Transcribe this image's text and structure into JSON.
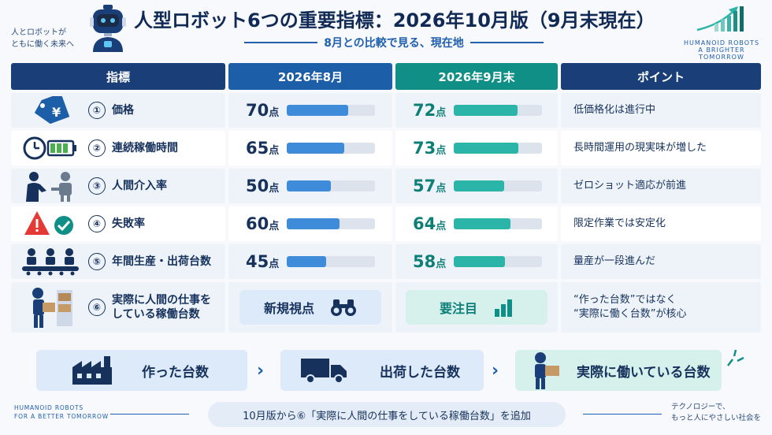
{
  "header": {
    "tagline_lines": [
      "人とロボットが",
      "ともに働く未来へ"
    ],
    "title": "人型ロボット6つの重要指標：2026年10月版（9月末現在）",
    "subtitle": "8月との比較で見る、現在地",
    "brand_lines": [
      "HUMANOID ROBOTS",
      "A BRIGHTER TOMORROW"
    ]
  },
  "table": {
    "columns": [
      "指標",
      "2026年8月",
      "2026年9月末",
      "ポイント"
    ],
    "score_unit": "点",
    "rows": [
      {
        "num": "①",
        "label": "価格",
        "icon": "price-tag-yen-icon",
        "aug": 70,
        "sep": 72,
        "point": "低価格化は進行中"
      },
      {
        "num": "②",
        "label": "連続稼働時間",
        "icon": "clock-battery-icon",
        "aug": 65,
        "sep": 73,
        "point": "長時間運用の現実味が増した"
      },
      {
        "num": "③",
        "label": "人間介入率",
        "icon": "human-robot-handshake-icon",
        "aug": 50,
        "sep": 57,
        "point": "ゼロショット適応が前進"
      },
      {
        "num": "④",
        "label": "失敗率",
        "icon": "warning-check-icon",
        "aug": 60,
        "sep": 64,
        "point": "限定作業では安定化"
      },
      {
        "num": "⑤",
        "label": "年間生産・出荷台数",
        "icon": "robot-assembly-line-icon",
        "aug": 45,
        "sep": 58,
        "point": "量産が一段進んだ"
      }
    ],
    "row6": {
      "num": "⑥",
      "label_lines": [
        "実際に人間の仕事を",
        "している稼働台数"
      ],
      "icon": "robot-carrying-box-icon",
      "aug_text": "新規視点",
      "aug_icon": "binoculars-icon",
      "sep_text": "要注目",
      "sep_icon": "bar-chart-icon",
      "point_lines": [
        "“作った台数”ではなく",
        "“実際に働く台数”が核心"
      ]
    }
  },
  "flow": {
    "steps": [
      {
        "label": "作った台数",
        "icon": "factory-icon"
      },
      {
        "label": "出荷した台数",
        "icon": "truck-icon"
      },
      {
        "label": "実際に働いている台数",
        "icon": "robot-with-box-icon"
      }
    ]
  },
  "footer": {
    "left_lines": [
      "HUMANOID ROBOTS",
      "FOR A BETTER TOMORROW"
    ],
    "note": "10月版から⑥「実際に人間の仕事をしている稼働台数」を追加",
    "right_lines": [
      "テクノロジーで、",
      "もっと人にやさしい社会を"
    ]
  },
  "colors": {
    "navy": "#1a3f78",
    "blue": "#1d5ea8",
    "teal": "#0f8f86",
    "bar_blue": "#3d8bd9",
    "bar_teal": "#2bb5a8"
  }
}
